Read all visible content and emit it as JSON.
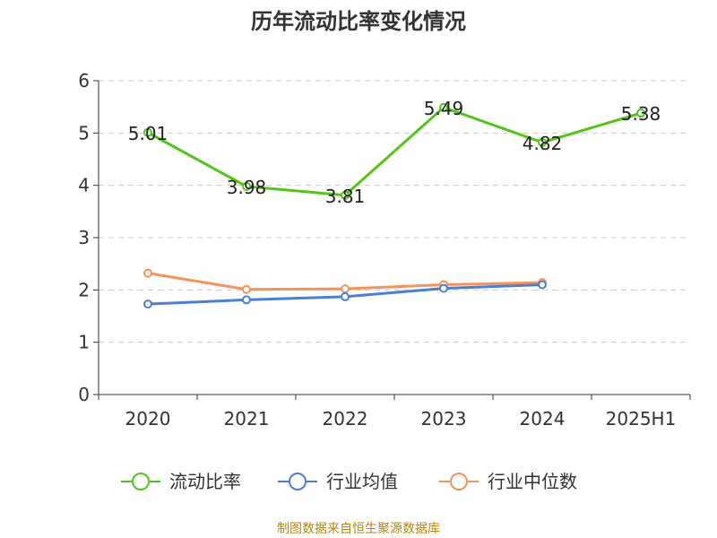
{
  "chart_data": {
    "type": "line",
    "title": "历年流动比率变化情况",
    "categories": [
      "2020",
      "2021",
      "2022",
      "2023",
      "2024",
      "2025H1"
    ],
    "ylim": [
      0,
      6
    ],
    "yticks": [
      "0",
      "1",
      "2",
      "3",
      "4",
      "5",
      "6"
    ],
    "grid": true,
    "legend_position": "bottom",
    "series": [
      {
        "name": "流动比率",
        "color": "#52c41a",
        "values": [
          5.01,
          3.98,
          3.81,
          5.49,
          4.82,
          5.38
        ],
        "labels": [
          "5.01",
          "3.98",
          "3.81",
          "5.49",
          "4.82",
          "5.38"
        ]
      },
      {
        "name": "行业均值",
        "color": "#4a7fd6",
        "values": [
          1.73,
          1.81,
          1.87,
          2.03,
          2.1,
          null
        ]
      },
      {
        "name": "行业中位数",
        "color": "#f5935a",
        "values": [
          2.32,
          2.01,
          2.02,
          2.1,
          2.14,
          null
        ]
      }
    ]
  },
  "footer": {
    "source": "制图数据来自恒生聚源数据库"
  }
}
